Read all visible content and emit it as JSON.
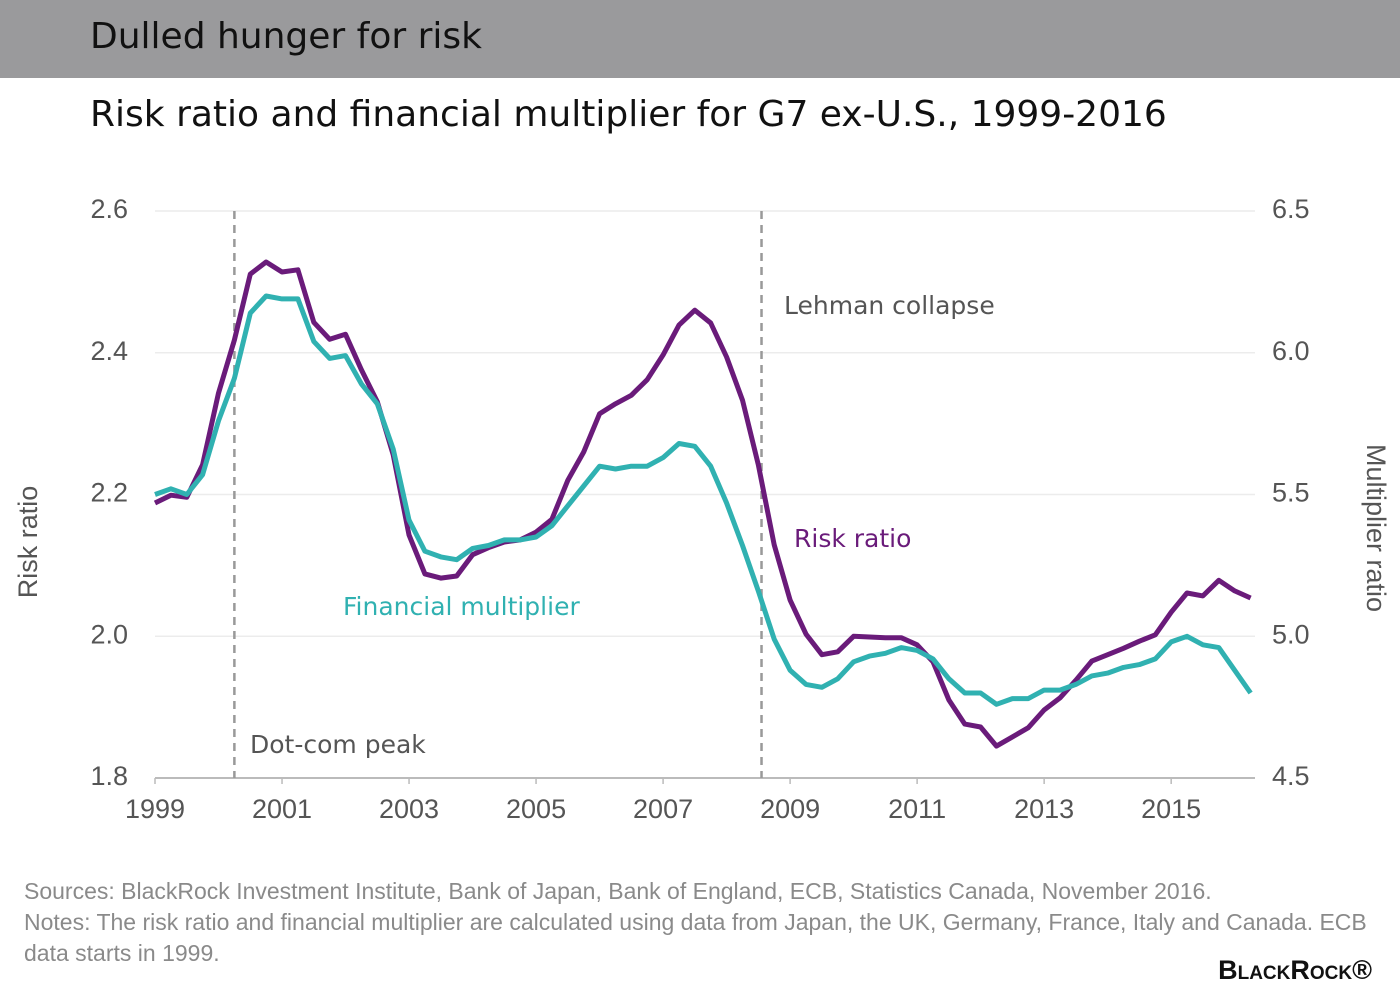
{
  "header": {
    "title": "Dulled hunger for risk"
  },
  "chart_data": {
    "type": "line",
    "title": "Risk ratio and financial multiplier for G7 ex-U.S., 1999-2016",
    "y_label": "Risk ratio",
    "y2_label": "Multiplier ratio",
    "x": [
      1999,
      1999.25,
      1999.5,
      1999.75,
      2000,
      2000.25,
      2000.5,
      2000.75,
      2001,
      2001.25,
      2001.5,
      2001.75,
      2002,
      2002.25,
      2002.5,
      2002.75,
      2003,
      2003.25,
      2003.5,
      2003.75,
      2004,
      2004.25,
      2004.5,
      2004.75,
      2005,
      2005.25,
      2005.5,
      2005.75,
      2006,
      2006.25,
      2006.5,
      2006.75,
      2007,
      2007.25,
      2007.5,
      2007.75,
      2008,
      2008.25,
      2008.5,
      2008.75,
      2009,
      2009.25,
      2009.5,
      2009.75,
      2010,
      2010.25,
      2010.5,
      2010.75,
      2011,
      2011.25,
      2011.5,
      2011.75,
      2012,
      2012.25,
      2012.5,
      2012.75,
      2013,
      2013.25,
      2013.5,
      2013.75,
      2014,
      2014.25,
      2014.5,
      2014.75,
      2015,
      2015.25,
      2015.5,
      2015.75,
      2016,
      2016.25
    ],
    "series": [
      {
        "name": "Risk ratio",
        "color": "#6a1b7a",
        "axis": "y",
        "values": [
          2.188,
          2.199,
          2.196,
          2.242,
          2.343,
          2.418,
          2.511,
          2.528,
          2.514,
          2.517,
          2.443,
          2.419,
          2.426,
          2.376,
          2.331,
          2.256,
          2.143,
          2.088,
          2.082,
          2.085,
          2.115,
          2.125,
          2.133,
          2.136,
          2.147,
          2.165,
          2.22,
          2.26,
          2.314,
          2.328,
          2.34,
          2.362,
          2.397,
          2.439,
          2.46,
          2.442,
          2.394,
          2.333,
          2.242,
          2.129,
          2.051,
          2.003,
          1.974,
          1.978,
          2.0,
          1.999,
          1.998,
          1.998,
          1.988,
          1.964,
          1.91,
          1.876,
          1.872,
          1.845,
          1.858,
          1.871,
          1.896,
          1.913,
          1.938,
          1.965,
          1.974,
          1.983,
          1.993,
          2.002,
          2.034,
          2.061,
          2.057,
          2.079,
          2.064,
          2.054
        ]
      },
      {
        "name": "Financial multiplier",
        "color": "#30b1b1",
        "axis": "y2",
        "values": [
          5.5,
          5.52,
          5.5,
          5.57,
          5.76,
          5.91,
          6.14,
          6.2,
          6.19,
          6.19,
          6.04,
          5.98,
          5.99,
          5.89,
          5.82,
          5.66,
          5.41,
          5.3,
          5.28,
          5.27,
          5.31,
          5.32,
          5.34,
          5.34,
          5.35,
          5.39,
          5.46,
          5.53,
          5.6,
          5.59,
          5.6,
          5.6,
          5.63,
          5.68,
          5.67,
          5.6,
          5.47,
          5.32,
          5.16,
          4.99,
          4.88,
          4.83,
          4.82,
          4.85,
          4.91,
          4.93,
          4.94,
          4.96,
          4.95,
          4.92,
          4.85,
          4.8,
          4.8,
          4.76,
          4.78,
          4.78,
          4.81,
          4.81,
          4.83,
          4.86,
          4.87,
          4.89,
          4.9,
          4.92,
          4.98,
          5.0,
          4.97,
          4.96,
          4.88,
          4.8
        ]
      }
    ],
    "xlim": [
      1999,
      2016.32
    ],
    "xticks": [
      1999,
      2001,
      2003,
      2005,
      2007,
      2009,
      2011,
      2013,
      2015
    ],
    "ylim": [
      1.8,
      2.6
    ],
    "yticks": [
      1.8,
      {
        "value": 2,
        "label": "2.0"
      },
      2.2,
      2.4,
      2.6
    ],
    "y2lim": [
      4.5,
      6.5
    ],
    "y2ticks": [
      4.5,
      {
        "value": 5,
        "label": "5.0"
      },
      5.5,
      {
        "value": 6,
        "label": "6.0"
      },
      6.5
    ],
    "grid": true,
    "events": [
      {
        "x": 2000.25,
        "label": "Dot-com peak"
      },
      {
        "x": 2008.55,
        "label": "Lehman collapse"
      }
    ]
  },
  "footer": {
    "sources": "Sources: BlackRock Investment Institute, Bank of Japan, Bank of England, ECB, Statistics Canada, November 2016.",
    "notes": "Notes: The risk ratio and financial multiplier are calculated using data from Japan, the UK, Germany, France, Italy and Canada. ECB data starts in 1999.",
    "logo": "BlackRock®"
  }
}
